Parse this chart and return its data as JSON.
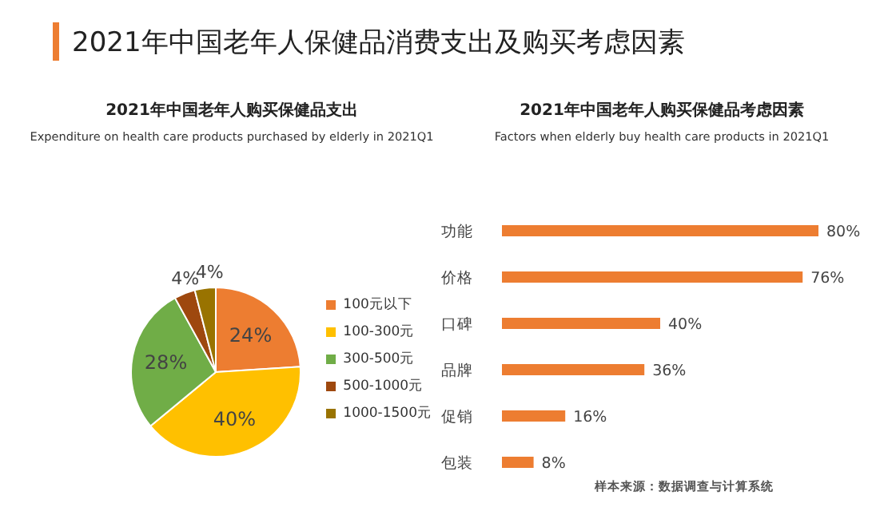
{
  "chart_data": [
    {
      "type": "pie",
      "title": "2021年中国老年人购买保健品支出",
      "subtitle": "Expenditure on health care products purchased by elderly in 2021Q1",
      "annotations": [
        "2021年中国老年人保健品消费支出及购买考虑因素"
      ],
      "categories": [
        "100元以下",
        "100-300元",
        "300-500元",
        "500-1000元",
        "1000-1500元"
      ],
      "values": [
        24,
        40,
        28,
        4,
        4
      ],
      "value_labels": [
        "24%",
        "40%",
        "28%",
        "4%",
        "4%"
      ],
      "colors": [
        "#ed7d31",
        "#ffc000",
        "#70ad47",
        "#9e480e",
        "#997300"
      ],
      "legend": "right"
    },
    {
      "type": "bar",
      "orientation": "horizontal",
      "title": "2021年中国老年人购买保健品考虑因素",
      "subtitle": "Factors when elderly  buy health care products in 2021Q1",
      "annotations": [
        "样本来源：数据调查与计算系统"
      ],
      "categories": [
        "功能",
        "价格",
        "口碑",
        "品牌",
        "促销",
        "包装"
      ],
      "values": [
        80,
        76,
        40,
        36,
        16,
        8
      ],
      "value_labels": [
        "80%",
        "76%",
        "40%",
        "36%",
        "16%",
        "8%"
      ],
      "color": "#ed7d31",
      "tick_labels": "y"
    }
  ]
}
